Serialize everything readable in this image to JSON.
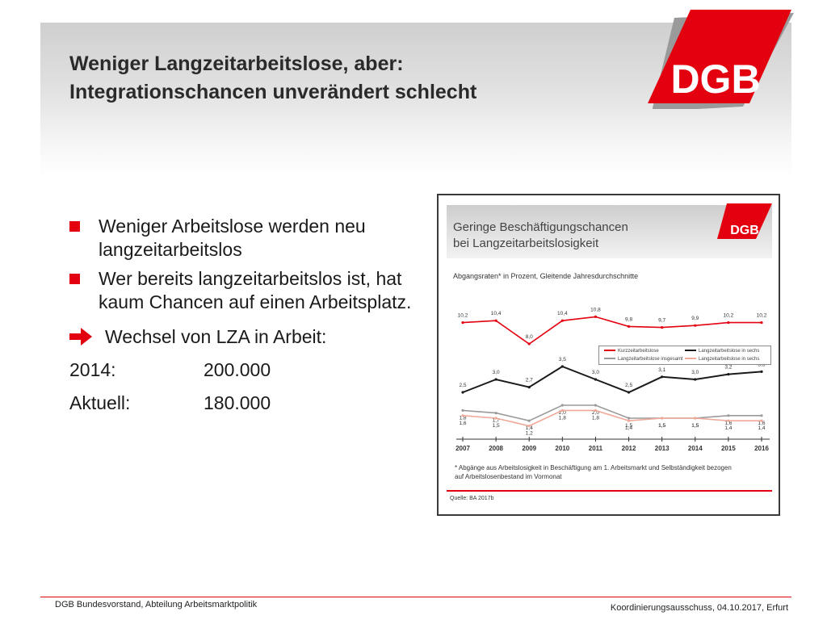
{
  "slide": {
    "title_line1": "Weniger Langzeitarbeitslose, aber:",
    "title_line2": "Integrationschancen unverändert schlecht",
    "logo_text": "DGB",
    "bullets": [
      "Weniger Arbeitslose werden neu langzeitarbeitslos",
      "Wer bereits langzeitarbeitslos ist, hat kaum Chancen auf einen Arbeitsplatz."
    ],
    "arrow_point": "Wechsel von LZA in Arbeit:",
    "stats": [
      {
        "label": "2014:",
        "value": "200.000"
      },
      {
        "label": "Aktuell:",
        "value": "180.000"
      }
    ]
  },
  "figure": {
    "title_line1": "Geringe Beschäftigungschancen",
    "title_line2": "bei Langzeitarbeitslosigkeit",
    "logo_text": "DGB",
    "subtitle": "Abgangsraten* in Prozent, Gleitende Jahresdurchschnitte",
    "footnote_line1": "* Abgänge aus Arbeitslosigkeit in Beschäftigung am 1. Arbeitsmarkt und Selbständigkeit bezogen",
    "footnote_line2": "auf Arbeitslosenbestand im Vormonat",
    "source": "Quelle: BA 2017b",
    "legend": [
      {
        "label": "Kurzzeitarbeitslose",
        "color": "#e3000f"
      },
      {
        "label": "Langzeitarbeitslose in sechs",
        "color": "#1a1a1a"
      },
      {
        "label": "Langzeitarbeitslose insgesamt",
        "color": "#9a9a9a"
      },
      {
        "label": "Langzeitarbeitslose in sechs",
        "color": "#f0a898"
      }
    ]
  },
  "chart_data": {
    "type": "line",
    "subtitle": "Abgangsraten* in Prozent, Gleitende Jahresdurchschnitte",
    "categories": [
      "2007",
      "2008",
      "2009",
      "2010",
      "2011",
      "2012",
      "2013",
      "2014",
      "2015",
      "2016"
    ],
    "series": [
      {
        "name": "Kurzzeitarbeitslose",
        "color": "#e3000f",
        "values": [
          10.2,
          10.4,
          8.0,
          10.4,
          10.8,
          9.8,
          9.7,
          9.9,
          10.2,
          10.2
        ],
        "labels": [
          "10,2",
          "10,4",
          "8,0",
          "10,4",
          "10,8",
          "9,8",
          "9,7",
          "9,9",
          "10,2",
          "10,2"
        ]
      },
      {
        "name": "Langzeitarbeitslose in sechs",
        "color": "#1a1a1a",
        "values": [
          2.5,
          3.0,
          2.7,
          3.5,
          3.0,
          2.5,
          3.1,
          3.0,
          3.2,
          3.3
        ],
        "labels": [
          "2,5",
          "3,0",
          "2,7",
          "3,5",
          "3,0",
          "2,5",
          "3,1",
          "3,0",
          "3,2",
          "3,3"
        ]
      },
      {
        "name": "Langzeitarbeitslose insgesamt",
        "color": "#9a9a9a",
        "values": [
          1.8,
          1.7,
          1.4,
          2.0,
          2.0,
          1.5,
          1.5,
          1.5,
          1.6,
          1.6
        ],
        "labels": [
          "1,8",
          "1,7",
          "1,4",
          "2,0",
          "2,0",
          "1,5",
          "1,5",
          "1,5",
          "1,6",
          "1,6"
        ]
      },
      {
        "name": "Langzeitarbeitslose in sechs",
        "color": "#f0a898",
        "values": [
          1.6,
          1.5,
          1.2,
          1.8,
          1.8,
          1.4,
          1.5,
          1.5,
          1.4,
          1.4
        ],
        "labels": [
          "1,6",
          "1,5",
          "1,2",
          "1,8",
          "1,8",
          "1,4",
          "1,5",
          "1,5",
          "1,4",
          "1,4"
        ]
      }
    ],
    "ylim": [
      0,
      12
    ],
    "grid": false,
    "legend_position": "center-right"
  },
  "footer": {
    "left": "DGB Bundesvorstand, Abteilung Arbeitsmarktpolitik",
    "right": "Koordinierungsausschuss, 04.10.2017, Erfurt"
  },
  "colors": {
    "accent": "#e3000f",
    "text": "#1a1a1a"
  }
}
